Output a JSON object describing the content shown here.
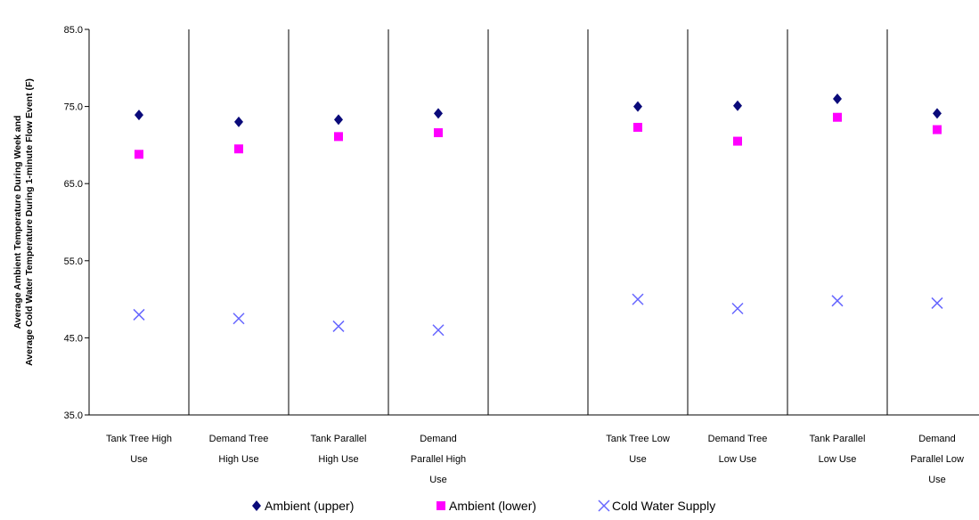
{
  "chart_data": {
    "type": "scatter",
    "title": "",
    "xlabel": "",
    "ylabel_lines": [
      "Average Ambient Temperature During Week and",
      "Average Cold Water Temperature During 1-minute Flow Event (F)"
    ],
    "ylim": [
      35.0,
      85.0
    ],
    "yticks": [
      "85.0",
      "75.0",
      "65.0",
      "55.0",
      "45.0",
      "35.0"
    ],
    "ytick_values": [
      85,
      75,
      65,
      55,
      45,
      35
    ],
    "categories": [
      [
        "Tank Tree High",
        "Use"
      ],
      [
        "Demand Tree",
        "High Use"
      ],
      [
        "Tank Parallel",
        "High Use"
      ],
      [
        "Demand",
        "Parallel High",
        "Use"
      ],
      [],
      [
        "Tank Tree Low",
        "Use"
      ],
      [
        "Demand Tree",
        "Low Use"
      ],
      [
        "Tank Parallel",
        "Low Use"
      ],
      [
        "Demand",
        "Parallel Low",
        "Use"
      ]
    ],
    "series": [
      {
        "name": "Ambient (upper)",
        "marker": "diamond",
        "color": "#0a0a7a",
        "values": [
          73.9,
          73.0,
          73.3,
          74.1,
          null,
          75.0,
          75.1,
          76.0,
          74.1
        ]
      },
      {
        "name": "Ambient (lower)",
        "marker": "square",
        "color": "#ff00ff",
        "values": [
          68.8,
          69.5,
          71.1,
          71.6,
          null,
          72.3,
          70.5,
          73.6,
          72.0
        ]
      },
      {
        "name": "Cold Water Supply",
        "marker": "x",
        "color": "#6666ff",
        "values": [
          48.0,
          47.5,
          46.5,
          46.0,
          null,
          50.0,
          48.8,
          49.8,
          49.5
        ]
      }
    ],
    "grid": false,
    "legend_position": "bottom"
  }
}
